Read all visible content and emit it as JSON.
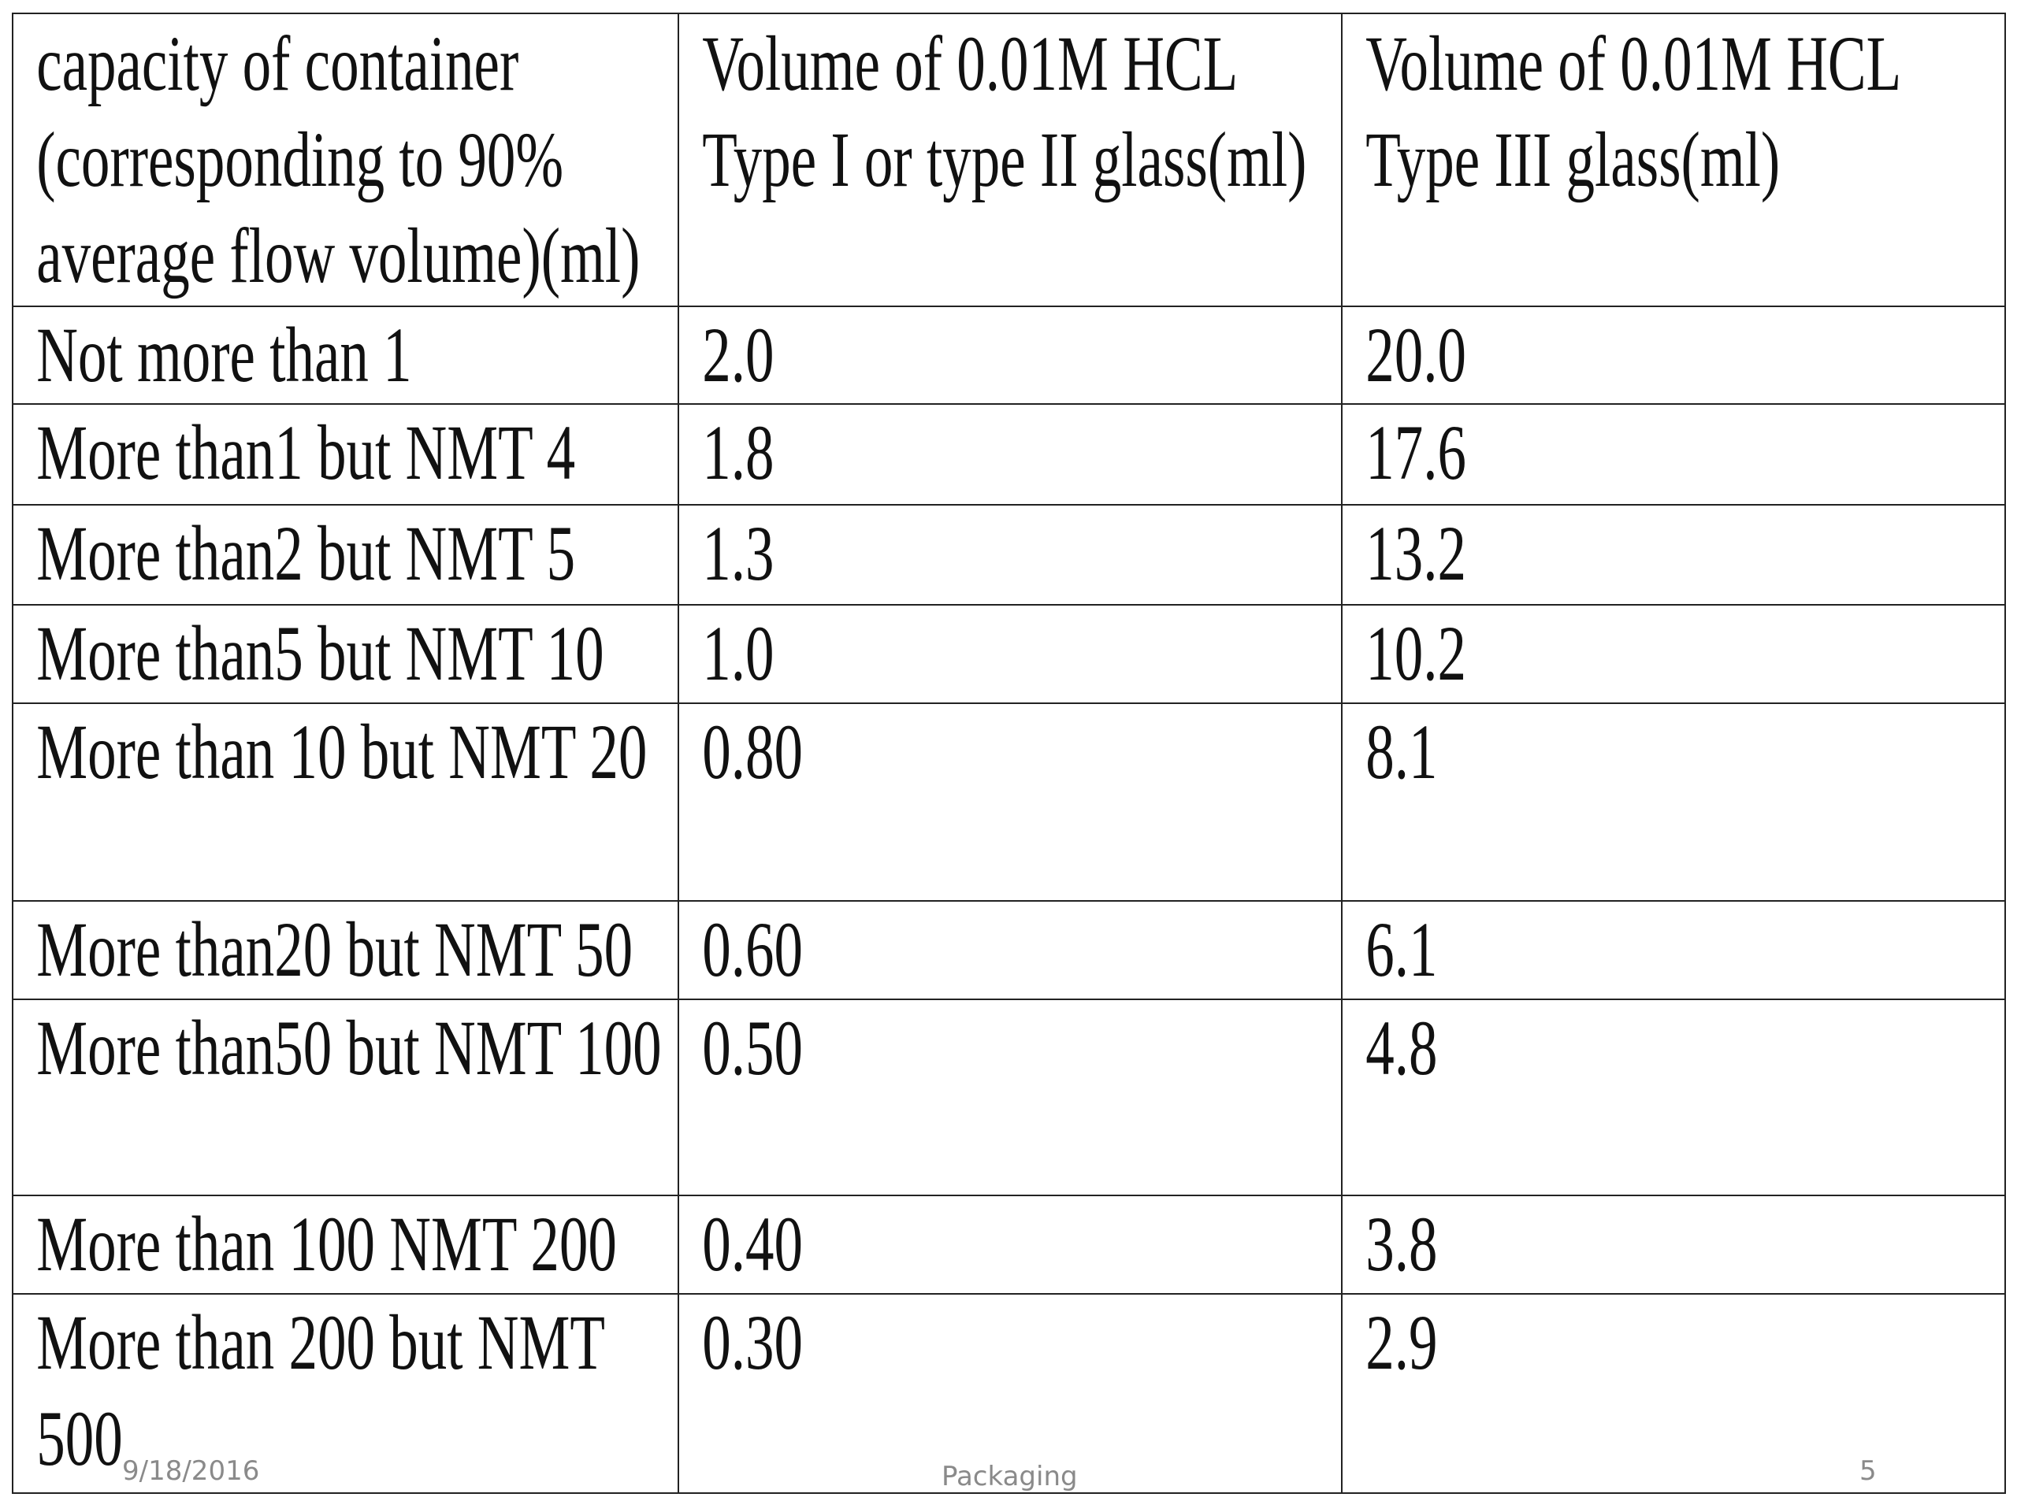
{
  "table": {
    "header": [
      "capacity of container (corresponding to 90% average flow volume)(ml)",
      "Volume of 0.01M HCL Type I or type II glass(ml)",
      "Volume of 0.01M HCL Type III glass(ml)"
    ],
    "rows": [
      [
        "Not more than 1",
        "2.0",
        "20.0"
      ],
      [
        "More than1 but NMT 4",
        "1.8",
        "17.6"
      ],
      [
        "More than2 but NMT 5",
        "1.3",
        "13.2"
      ],
      [
        "More than5 but NMT 10",
        "1.0",
        "10.2"
      ],
      [
        "More than 10 but NMT 20",
        "0.80",
        "8.1"
      ],
      [
        "More than20 but NMT 50",
        "0.60",
        "6.1"
      ],
      [
        "More than50 but NMT 100",
        "0.50",
        "4.8"
      ],
      [
        "More than 100 NMT 200",
        "0.40",
        "3.8"
      ],
      [
        "More than 200 but NMT 500",
        "0.30",
        "2.9"
      ]
    ]
  },
  "footer": {
    "date": "9/18/2016",
    "title": "Packaging",
    "page_number": "5"
  }
}
